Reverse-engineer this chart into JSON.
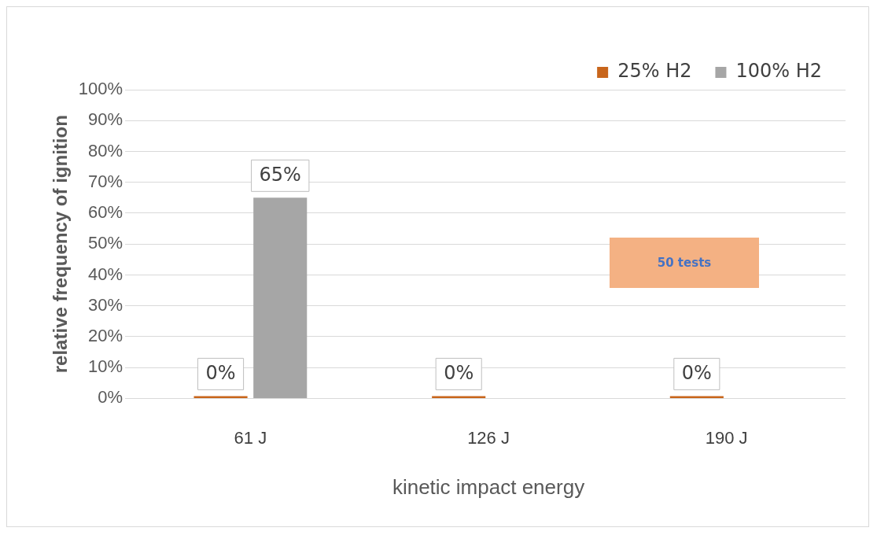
{
  "chart_data": {
    "type": "bar",
    "xlabel": "kinetic impact energy",
    "ylabel": "relative frequency of ignition",
    "categories": [
      "61 J",
      "126 J",
      "190 J"
    ],
    "series": [
      {
        "name": "25% H2",
        "color": "#c8651b",
        "values": [
          0,
          0,
          0
        ],
        "value_labels": [
          "0%",
          "0%",
          "0%"
        ]
      },
      {
        "name": "100% H2",
        "color": "#a6a6a6",
        "values": [
          65,
          null,
          null
        ],
        "value_labels": [
          "65%",
          null,
          null
        ]
      }
    ],
    "ylim": [
      0,
      100
    ],
    "yticks": [
      {
        "value": 0,
        "label": "0%"
      },
      {
        "value": 10,
        "label": "10%"
      },
      {
        "value": 20,
        "label": "20%"
      },
      {
        "value": 30,
        "label": "30%"
      },
      {
        "value": 40,
        "label": "40%"
      },
      {
        "value": 50,
        "label": "50%"
      },
      {
        "value": 60,
        "label": "60%"
      },
      {
        "value": 70,
        "label": "70%"
      },
      {
        "value": 80,
        "label": "80%"
      },
      {
        "value": 90,
        "label": "90%"
      },
      {
        "value": 100,
        "label": "100%"
      }
    ],
    "grid": "y",
    "legend": "top right",
    "annotations": [
      "50 tests"
    ]
  }
}
